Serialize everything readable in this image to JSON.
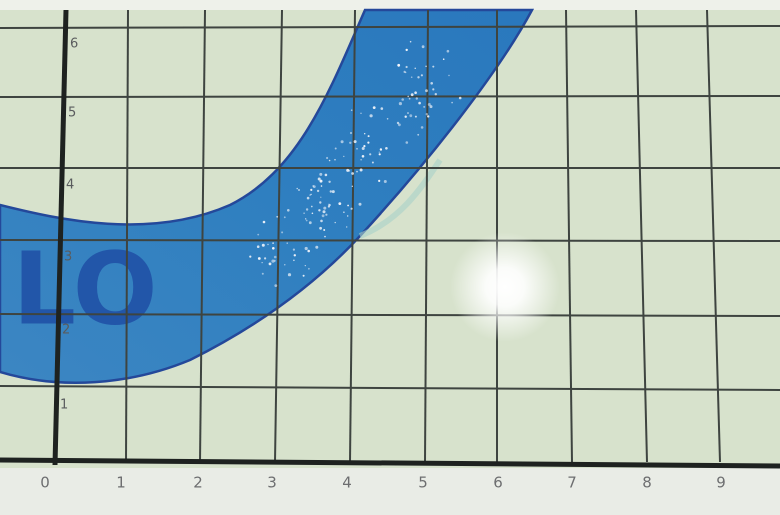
{
  "x_labels": [
    "0",
    "1",
    "2",
    "3",
    "4",
    "5",
    "6",
    "7",
    "8",
    "9"
  ],
  "y_labels": [
    "1",
    "2",
    "3",
    "4",
    "5",
    "6"
  ],
  "river_label": "LO"
}
